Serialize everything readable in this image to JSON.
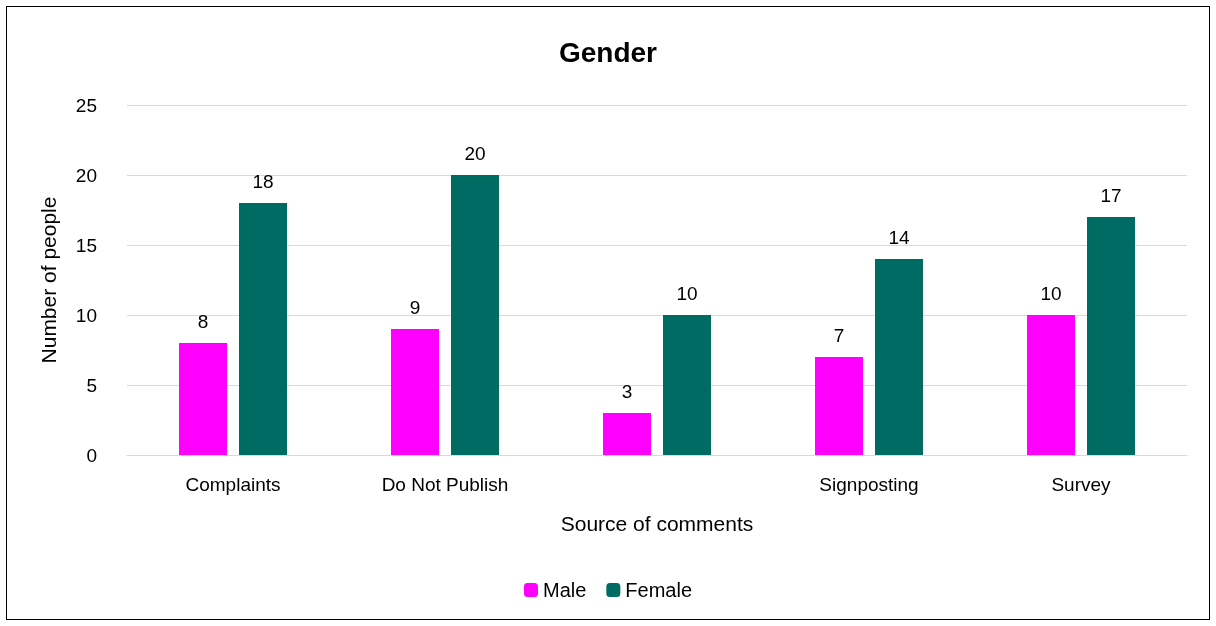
{
  "chart_data": {
    "type": "bar",
    "title": "Gender",
    "xlabel": "Source of comments",
    "ylabel": "Number of people",
    "categories": [
      "Complaints",
      "Do Not Publish",
      null,
      "Signposting",
      "Survey"
    ],
    "series": [
      {
        "name": "Male",
        "color": "#ff00ff",
        "values": [
          8,
          9,
          3,
          7,
          10
        ]
      },
      {
        "name": "Female",
        "color": "#006b63",
        "values": [
          18,
          20,
          10,
          14,
          17
        ]
      }
    ],
    "ylim": [
      0,
      25
    ],
    "yticks": [
      0,
      5,
      10,
      15,
      20,
      25
    ],
    "grid": "y",
    "legend": "bottom",
    "data_labels": true
  }
}
